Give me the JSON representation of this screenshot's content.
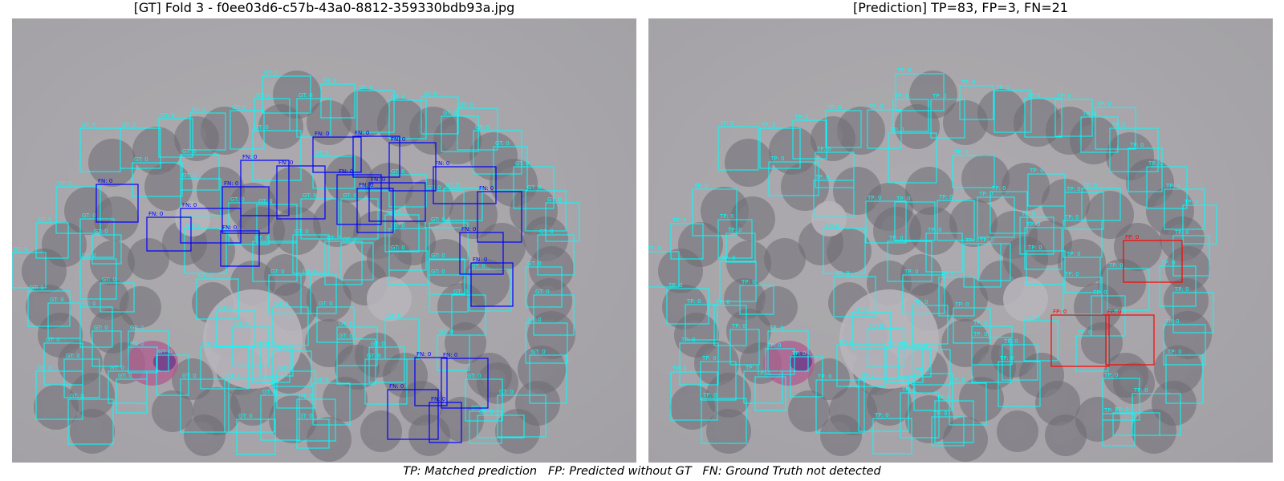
{
  "left_panel": {
    "title": "[GT] Fold 3 - f0ee03d6-c57b-43a0-8812-359330bdb93a.jpg",
    "labels": {
      "gt": "GT: 0",
      "fn": "FN: 0"
    }
  },
  "right_panel": {
    "title": "[Prediction] TP=83, FP=3, FN=21",
    "labels": {
      "tp": "TP: 0",
      "fp": "FP: 0"
    }
  },
  "stats": {
    "tp": 83,
    "fp": 3,
    "fn": 21
  },
  "colors": {
    "gt_box": "#00ffff",
    "tp_box": "#00ffff",
    "fn_box": "#0000ff",
    "fp_box": "#ff0000",
    "background": "#a8a6aa",
    "cell": "#6e6c72",
    "stained_cell": "#b05a8e"
  },
  "legend": {
    "text": "TP: Matched prediction   FP: Predicted without GT   FN: Ground Truth not detected"
  }
}
